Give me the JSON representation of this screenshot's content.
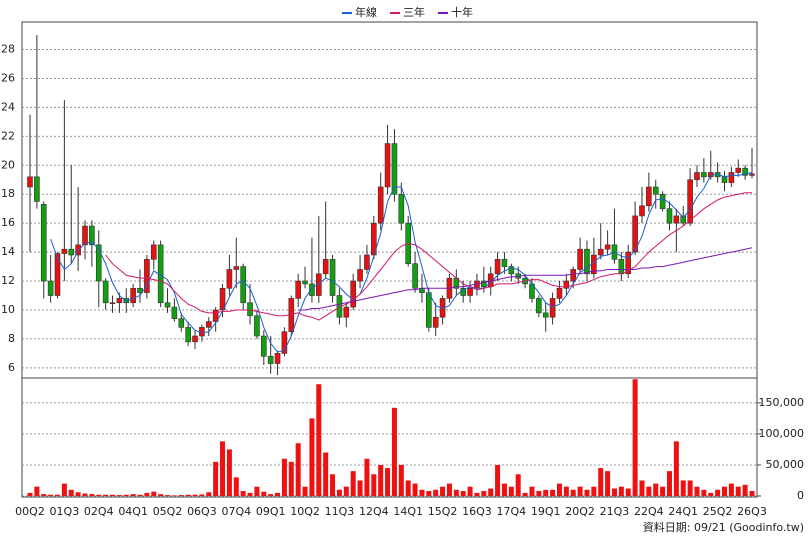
{
  "chart_data": {
    "type": "candlestick",
    "legend": "top",
    "grid": true,
    "up_color": "#e81010",
    "down_color": "#10a010",
    "categories": [
      "00Q2",
      null,
      null,
      null,
      null,
      "01Q3",
      null,
      null,
      null,
      null,
      "02Q4",
      null,
      null,
      null,
      null,
      "04Q1",
      null,
      null,
      null,
      null,
      "05Q2",
      null,
      null,
      null,
      null,
      "06Q3",
      null,
      null,
      null,
      null,
      "07Q4",
      null,
      null,
      null,
      null,
      "09Q1",
      null,
      null,
      null,
      null,
      "10Q2",
      null,
      null,
      null,
      null,
      "11Q3",
      null,
      null,
      null,
      null,
      "12Q4",
      null,
      null,
      null,
      null,
      "14Q1",
      null,
      null,
      null,
      null,
      "15Q2",
      null,
      null,
      null,
      null,
      "16Q3",
      null,
      null,
      null,
      null,
      "17Q4",
      null,
      null,
      null,
      null,
      "19Q1",
      null,
      null,
      null,
      null,
      "20Q2",
      null,
      null,
      null,
      null,
      "21Q3",
      null,
      null,
      null,
      null,
      "22Q4",
      null,
      null,
      null,
      null,
      "24Q1",
      null,
      null,
      null,
      null,
      "25Q2",
      null,
      null,
      null,
      null,
      "26Q3"
    ],
    "open": [
      18.5,
      19.2,
      17.3,
      12,
      11,
      13.9,
      14.2,
      13.8,
      14.5,
      15.8,
      14.5,
      12,
      10.5,
      10.5,
      10.8,
      10.5,
      11.5,
      11.2,
      13.5,
      14.5,
      10.5,
      10.2,
      9.4,
      8.8,
      7.8,
      8.2,
      8.8,
      9.2,
      10,
      11.5,
      12.8,
      13,
      10.5,
      9.6,
      8.2,
      6.8,
      6.3,
      7,
      8.5,
      10.8,
      12,
      11.8,
      11,
      12.5,
      13.5,
      11,
      9.5,
      10.2,
      12,
      12.8,
      13.8,
      16,
      18.5,
      21.5,
      18,
      16,
      13.2,
      11.5,
      11.2,
      8.8,
      9.5,
      10.8,
      12.2,
      11.5,
      11,
      11.5,
      12,
      11.6,
      12.5,
      13.5,
      13,
      12.5,
      12.2,
      11.8,
      10.8,
      9.8,
      9.5,
      10.8,
      11.5,
      12,
      12.8,
      14.2,
      12.5,
      13.8,
      14.2,
      14.5,
      13.5,
      12.5,
      14,
      16.5,
      17.2,
      18.5,
      18,
      17,
      16,
      16.5,
      16,
      19,
      19.5,
      19.2,
      19.5,
      19.2,
      18.8,
      19.5,
      19.8,
      19.3
    ],
    "high": [
      23.5,
      29,
      17.5,
      13.8,
      14,
      24.5,
      20,
      18.5,
      16.2,
      16.2,
      15.5,
      12.2,
      11,
      11.2,
      11.5,
      11.8,
      12.8,
      13.8,
      14.8,
      14.8,
      11.5,
      10.8,
      9.8,
      9.2,
      8.6,
      9,
      9.5,
      10.2,
      11.8,
      13.8,
      15,
      13.2,
      11.8,
      10,
      8.6,
      8.2,
      7.2,
      8.8,
      11,
      12.5,
      13,
      15,
      16.5,
      17.5,
      13.8,
      11.5,
      10.5,
      12.5,
      13.8,
      14.5,
      16.5,
      19.5,
      22.8,
      22.5,
      18.8,
      16.5,
      14,
      12.5,
      11.5,
      10.5,
      11,
      12.5,
      12.8,
      12,
      12,
      12.5,
      13,
      13,
      14,
      14,
      13.2,
      13,
      12.5,
      12.2,
      11,
      10.5,
      11.2,
      12,
      12.5,
      13,
      15,
      14.8,
      15,
      16,
      15.5,
      17,
      14,
      14.5,
      17.5,
      18.5,
      19.5,
      19,
      18.2,
      17.5,
      17,
      17.2,
      19.8,
      20,
      20.5,
      21,
      20.2,
      19.6,
      19.9,
      20.4,
      20,
      21.2
    ],
    "low": [
      14,
      17,
      10.8,
      10.5,
      10.8,
      12,
      13.2,
      12.7,
      13.5,
      13,
      10.2,
      10,
      9.8,
      9.8,
      9.8,
      10.2,
      10.5,
      10.8,
      12.8,
      10.2,
      9.8,
      9.2,
      8.5,
      7.5,
      7.3,
      7.8,
      8.2,
      8.5,
      9.5,
      11,
      11.5,
      10,
      9,
      8,
      6.2,
      5.6,
      5.5,
      6.8,
      8.2,
      10.2,
      11.5,
      10.5,
      10.5,
      12.2,
      10.5,
      9,
      8.8,
      10,
      11.5,
      12.5,
      13.5,
      15.5,
      18,
      17.5,
      15.5,
      13,
      11.2,
      10.5,
      8.5,
      8.2,
      9,
      10.5,
      11,
      10.5,
      10.5,
      11,
      11.2,
      11,
      12,
      12.5,
      12,
      11.8,
      11.5,
      10.5,
      9.5,
      8.5,
      9,
      10.5,
      11,
      11.5,
      12.5,
      12,
      12.2,
      13.5,
      13.8,
      13.2,
      12,
      12.2,
      13.8,
      16,
      16.8,
      17,
      16.8,
      15.5,
      14,
      15.8,
      15.8,
      18.5,
      18.8,
      19,
      18.8,
      18.2,
      18.5,
      19.2,
      19,
      19.1
    ],
    "close": [
      19.2,
      17.5,
      12,
      11,
      13.9,
      14.2,
      13.8,
      14.5,
      15.8,
      14.5,
      12,
      10.5,
      10.5,
      10.8,
      10.5,
      11.5,
      11.2,
      13.5,
      14.5,
      10.5,
      10.2,
      9.4,
      8.8,
      7.8,
      8.2,
      8.8,
      9.2,
      10,
      11.5,
      12.8,
      13,
      10.5,
      9.6,
      8.2,
      6.8,
      6.3,
      7,
      8.5,
      10.8,
      12,
      11.8,
      11,
      12.5,
      13.5,
      11,
      9.5,
      10.2,
      12,
      12.8,
      13.8,
      16,
      18.5,
      21.5,
      18,
      16,
      13.2,
      11.5,
      11.2,
      8.8,
      9.5,
      10.8,
      12.2,
      11.5,
      11,
      11.5,
      12,
      11.6,
      12.5,
      13.5,
      13,
      12.5,
      12.2,
      11.8,
      10.8,
      9.8,
      9.5,
      10.8,
      11.5,
      12,
      12.8,
      14.2,
      12.5,
      13.8,
      14.2,
      14.5,
      13.5,
      12.5,
      14,
      16.5,
      17.2,
      18.5,
      18,
      17,
      16,
      16.5,
      16,
      19,
      19.5,
      19.2,
      19.5,
      19.2,
      18.8,
      19.5,
      19.8,
      19.3,
      19.4
    ],
    "ylim": [
      5.3,
      29.9
    ],
    "yticks": [
      6,
      8,
      10,
      12,
      14,
      16,
      18,
      20,
      22,
      24,
      26,
      28
    ],
    "series": [
      {
        "name": "年線",
        "color": "#1a5fd0",
        "values": [
          null,
          null,
          null,
          14.9,
          13.6,
          12.8,
          13.2,
          14.1,
          14.6,
          14.7,
          14.2,
          13.2,
          11.9,
          11,
          10.6,
          10.8,
          11,
          11.7,
          12.7,
          12.4,
          12.1,
          11.2,
          9.7,
          9.1,
          8.6,
          8.4,
          8.5,
          9.1,
          9.9,
          10.9,
          11.8,
          12,
          11.5,
          10.3,
          8.8,
          7.7,
          7.1,
          7.2,
          8.2,
          9.6,
          10.8,
          11.5,
          11.8,
          12.2,
          12,
          11.6,
          11.1,
          10.7,
          11.1,
          12.2,
          13.7,
          15.3,
          17.5,
          18.5,
          18.5,
          17.2,
          14.7,
          13,
          11.2,
          10.3,
          10.1,
          10.3,
          11,
          11.4,
          11.6,
          11.5,
          11.5,
          11.9,
          12.4,
          12.7,
          12.9,
          12.8,
          12.4,
          11.8,
          11.2,
          10.5,
          10.2,
          10.4,
          11,
          11.8,
          12.6,
          12.9,
          13.3,
          13.7,
          13.8,
          14,
          13.7,
          13.6,
          14.1,
          15.1,
          16.6,
          17.6,
          17.7,
          17.4,
          16.9,
          16.4,
          16.9,
          17.8,
          18.4,
          19.3,
          19.4,
          19.2,
          19.3,
          19.3,
          19.4,
          19.5
        ]
      },
      {
        "name": "三年",
        "color": "#d0186a",
        "values": [
          null,
          null,
          null,
          null,
          null,
          null,
          null,
          null,
          null,
          null,
          null,
          13.8,
          13.2,
          12.8,
          12.4,
          12.3,
          12.2,
          12.2,
          12.1,
          12,
          11.8,
          11.3,
          10.8,
          10.4,
          10.2,
          9.9,
          9.8,
          9.8,
          9.9,
          9.9,
          10,
          10,
          10,
          9.9,
          9.8,
          9.7,
          9.6,
          9.6,
          9.7,
          9.8,
          9.6,
          9.5,
          9.3,
          9.6,
          9.9,
          10.2,
          10.4,
          10.7,
          11.1,
          11.6,
          12.2,
          12.8,
          13.4,
          14,
          14.4,
          14.6,
          14.5,
          14.2,
          13.8,
          13.4,
          13,
          12.6,
          12.2,
          11.8,
          11.6,
          11.4,
          11.5,
          11.6,
          11.8,
          11.8,
          11.8,
          11.9,
          12,
          12.1,
          12.1,
          11.9,
          11.7,
          11.6,
          11.6,
          11.7,
          11.8,
          11.9,
          12.1,
          12.3,
          12.4,
          12.5,
          12.5,
          12.7,
          13,
          13.5,
          14,
          14.4,
          14.8,
          15.2,
          15.5,
          15.8,
          16.2,
          16.6,
          17,
          17.3,
          17.6,
          17.8,
          17.9,
          18,
          18.1,
          18.1
        ]
      },
      {
        "name": "十年",
        "color": "#7a18b8",
        "values": [
          null,
          null,
          null,
          null,
          null,
          null,
          null,
          null,
          null,
          null,
          null,
          null,
          null,
          null,
          null,
          null,
          null,
          null,
          null,
          null,
          null,
          null,
          null,
          null,
          null,
          null,
          null,
          null,
          null,
          null,
          null,
          null,
          null,
          null,
          null,
          null,
          null,
          null,
          null,
          10,
          10,
          10.1,
          10.1,
          10.2,
          10.3,
          10.4,
          10.5,
          10.6,
          10.7,
          10.8,
          10.9,
          11,
          11.1,
          11.2,
          11.3,
          11.4,
          11.4,
          11.5,
          11.5,
          11.5,
          11.5,
          11.5,
          11.6,
          11.6,
          11.7,
          11.8,
          11.9,
          12,
          12.1,
          12.2,
          12.3,
          12.3,
          12.4,
          12.4,
          12.4,
          12.4,
          12.4,
          12.4,
          12.4,
          12.5,
          12.5,
          12.6,
          12.7,
          12.7,
          12.8,
          12.8,
          12.8,
          12.8,
          12.8,
          12.9,
          12.9,
          13,
          13,
          13.1,
          13.2,
          13.3,
          13.4,
          13.5,
          13.6,
          13.7,
          13.8,
          13.9,
          14,
          14.1,
          14.2,
          14.3
        ]
      }
    ],
    "volume": {
      "color": "#ee1111",
      "values": [
        5000,
        15000,
        3000,
        2000,
        2000,
        20000,
        10000,
        6000,
        4000,
        3000,
        2000,
        2000,
        2000,
        1500,
        2000,
        3000,
        2000,
        5000,
        7000,
        3000,
        1500,
        1000,
        1500,
        2000,
        2000,
        2500,
        6000,
        55000,
        88000,
        75000,
        30000,
        8000,
        5000,
        15000,
        7000,
        3000,
        5000,
        60000,
        55000,
        85000,
        15000,
        125000,
        180000,
        70000,
        35000,
        10000,
        15000,
        40000,
        25000,
        60000,
        35000,
        50000,
        45000,
        142000,
        50000,
        25000,
        20000,
        10000,
        8000,
        10000,
        15000,
        20000,
        10000,
        8000,
        15000,
        5000,
        8000,
        12000,
        50000,
        20000,
        15000,
        35000,
        5000,
        15000,
        8000,
        10000,
        10000,
        20000,
        15000,
        10000,
        15000,
        10000,
        15000,
        45000,
        40000,
        12000,
        15000,
        12000,
        188000,
        25000,
        15000,
        20000,
        15000,
        40000,
        88000,
        25000,
        25000,
        15000,
        10000,
        5000,
        10000,
        15000,
        20000,
        15000,
        18000,
        8000
      ],
      "ylim": [
        0,
        190000
      ],
      "yticks": [
        0,
        {
          "value": 50000,
          "label": "50,000"
        },
        {
          "value": 100000,
          "label": "100,000"
        },
        {
          "value": 150000,
          "label": "150,000"
        }
      ]
    },
    "footnote": "資料日期: 09/21 (Goodinfo.tw)"
  }
}
